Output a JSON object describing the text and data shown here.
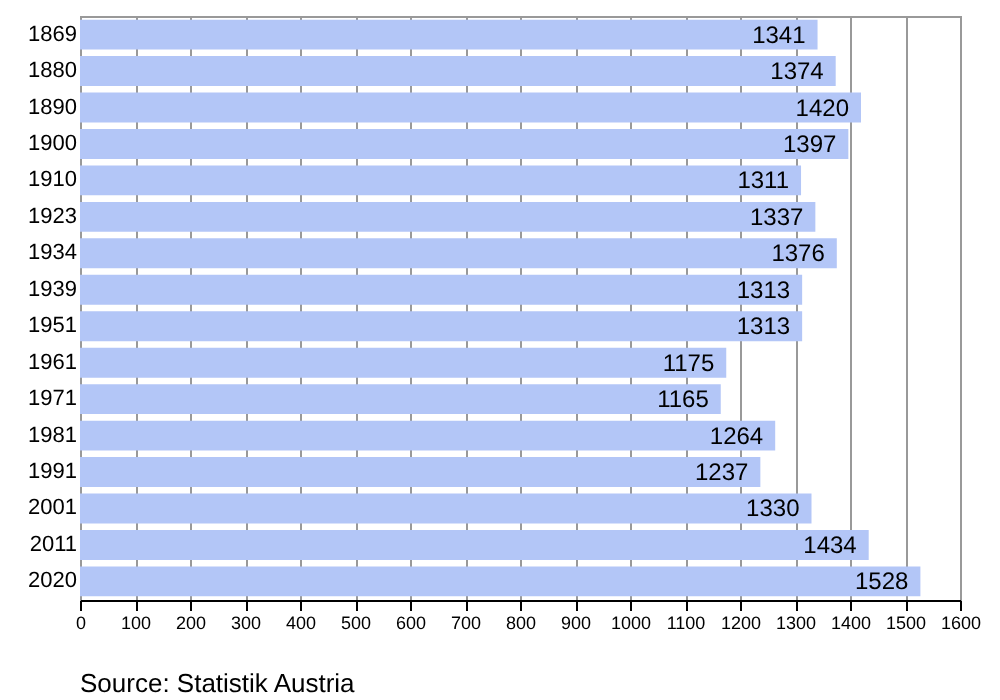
{
  "chart_data": {
    "type": "bar",
    "orientation": "horizontal",
    "categories": [
      "1869",
      "1880",
      "1890",
      "1900",
      "1910",
      "1923",
      "1934",
      "1939",
      "1951",
      "1961",
      "1971",
      "1981",
      "1991",
      "2001",
      "2011",
      "2020"
    ],
    "values": [
      1341,
      1374,
      1420,
      1397,
      1311,
      1337,
      1376,
      1313,
      1313,
      1175,
      1165,
      1264,
      1237,
      1330,
      1434,
      1528
    ],
    "color": "#b3c6f7",
    "data_labels": true,
    "xlim": [
      0,
      1600
    ],
    "xticks": [
      0,
      100,
      200,
      300,
      400,
      500,
      600,
      700,
      800,
      900,
      1000,
      1100,
      1200,
      1300,
      1400,
      1500,
      1600
    ],
    "grid": "x",
    "annotations": [
      "Source: Statistik Austria"
    ]
  }
}
